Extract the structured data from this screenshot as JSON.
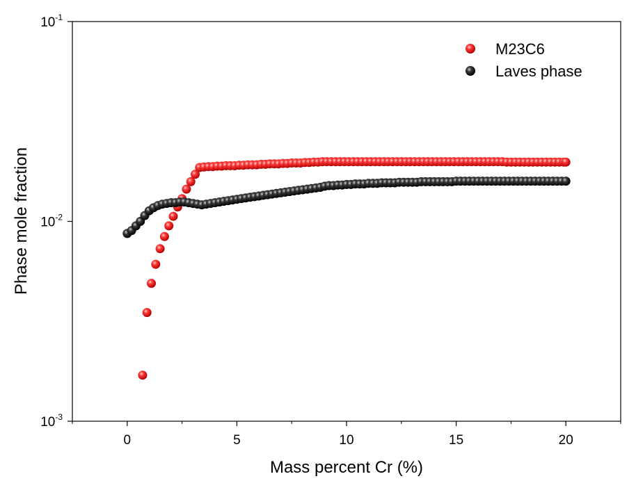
{
  "chart_data": {
    "type": "scatter",
    "title": "",
    "xlabel": "Mass percent Cr (%)",
    "ylabel": "Phase mole fraction",
    "xlim": [
      -2.5,
      22.5
    ],
    "ylim": [
      0.001,
      0.1
    ],
    "yscale": "log",
    "x_ticks": [
      0,
      5,
      10,
      15,
      20
    ],
    "y_ticks": [
      {
        "base": "10",
        "exp": "-3"
      },
      {
        "base": "10",
        "exp": "-2"
      },
      {
        "base": "10",
        "exp": "-1"
      }
    ],
    "grid": false,
    "legend": {
      "position": "top-right"
    },
    "series": [
      {
        "name": "M23C6",
        "color": "#e8141c",
        "x": [
          0.7,
          0.9,
          1.1,
          1.3,
          1.5,
          1.7,
          1.9,
          2.1,
          2.3,
          2.5,
          2.7,
          2.9,
          3.1,
          3.3,
          3.5,
          3.7,
          3.9,
          4.1,
          4.3,
          4.5,
          4.7,
          4.9,
          5.1,
          5.3,
          5.5,
          5.7,
          5.9,
          6.1,
          6.3,
          6.5,
          6.7,
          6.9,
          7.1,
          7.3,
          7.5,
          7.7,
          7.9,
          8.1,
          8.3,
          8.5,
          8.7,
          8.9,
          9.1,
          9.3,
          9.5,
          9.7,
          9.9,
          10.1,
          10.3,
          10.5,
          10.7,
          10.9,
          11.1,
          11.3,
          11.5,
          11.7,
          11.9,
          12.1,
          12.3,
          12.5,
          12.7,
          12.9,
          13.1,
          13.3,
          13.5,
          13.7,
          13.9,
          14.1,
          14.3,
          14.5,
          14.7,
          14.9,
          15.1,
          15.3,
          15.5,
          15.7,
          15.9,
          16.1,
          16.3,
          16.5,
          16.7,
          16.9,
          17.1,
          17.3,
          17.5,
          17.7,
          17.9,
          18.1,
          18.3,
          18.5,
          18.7,
          18.9,
          19.1,
          19.3,
          19.5,
          19.7,
          19.9,
          20.0
        ],
        "y": [
          0.0017,
          0.0035,
          0.0049,
          0.0061,
          0.0073,
          0.0084,
          0.0095,
          0.0106,
          0.0118,
          0.013,
          0.0145,
          0.0158,
          0.0172,
          0.0186,
          0.0187,
          0.0188,
          0.0188,
          0.0189,
          0.0189,
          0.019,
          0.019,
          0.019,
          0.0191,
          0.0191,
          0.0192,
          0.0192,
          0.0192,
          0.0193,
          0.0193,
          0.0194,
          0.0194,
          0.0194,
          0.0195,
          0.0195,
          0.0196,
          0.0196,
          0.0196,
          0.0197,
          0.0197,
          0.0198,
          0.0198,
          0.0199,
          0.0199,
          0.0199,
          0.0199,
          0.0199,
          0.0199,
          0.0199,
          0.0199,
          0.0199,
          0.0199,
          0.0199,
          0.0199,
          0.0199,
          0.0199,
          0.0199,
          0.0199,
          0.0199,
          0.0199,
          0.0199,
          0.0199,
          0.0199,
          0.0199,
          0.0199,
          0.0199,
          0.0199,
          0.0199,
          0.0199,
          0.0199,
          0.0199,
          0.0199,
          0.0199,
          0.0199,
          0.0199,
          0.0199,
          0.0199,
          0.0199,
          0.0199,
          0.0199,
          0.0199,
          0.0199,
          0.0199,
          0.0199,
          0.0198,
          0.0198,
          0.0198,
          0.0198,
          0.0198,
          0.0198,
          0.0198,
          0.0198,
          0.0198,
          0.0198,
          0.0198,
          0.0198,
          0.0198,
          0.0198,
          0.0198
        ]
      },
      {
        "name": "Laves phase",
        "color": "#141414",
        "x": [
          0.0,
          0.2,
          0.4,
          0.6,
          0.8,
          1.0,
          1.2,
          1.4,
          1.6,
          1.8,
          2.0,
          2.2,
          2.4,
          2.6,
          2.8,
          3.0,
          3.2,
          3.4,
          3.6,
          3.8,
          4.0,
          4.2,
          4.4,
          4.6,
          4.8,
          5.0,
          5.2,
          5.4,
          5.6,
          5.8,
          6.0,
          6.2,
          6.4,
          6.6,
          6.8,
          7.0,
          7.2,
          7.4,
          7.6,
          7.8,
          8.0,
          8.2,
          8.4,
          8.6,
          8.8,
          9.0,
          9.2,
          9.4,
          9.6,
          9.8,
          10.0,
          10.2,
          10.4,
          10.6,
          10.8,
          11.0,
          11.2,
          11.4,
          11.6,
          11.8,
          12.0,
          12.2,
          12.4,
          12.6,
          12.8,
          13.0,
          13.2,
          13.4,
          13.6,
          13.8,
          14.0,
          14.2,
          14.4,
          14.6,
          14.8,
          15.0,
          15.2,
          15.4,
          15.6,
          15.8,
          16.0,
          16.2,
          16.4,
          16.6,
          16.8,
          17.0,
          17.2,
          17.4,
          17.6,
          17.8,
          18.0,
          18.2,
          18.4,
          18.6,
          18.8,
          19.0,
          19.2,
          19.4,
          19.6,
          19.8,
          20.0
        ],
        "y": [
          0.0087,
          0.009,
          0.0095,
          0.01,
          0.0107,
          0.0113,
          0.0117,
          0.012,
          0.0122,
          0.0123,
          0.0124,
          0.0124,
          0.0125,
          0.0125,
          0.0124,
          0.0123,
          0.0122,
          0.0121,
          0.0122,
          0.0123,
          0.0124,
          0.0125,
          0.0126,
          0.0127,
          0.0128,
          0.0129,
          0.013,
          0.0131,
          0.0132,
          0.0133,
          0.0134,
          0.0135,
          0.0136,
          0.0137,
          0.0138,
          0.0139,
          0.014,
          0.0141,
          0.0142,
          0.0143,
          0.0144,
          0.0145,
          0.0146,
          0.0147,
          0.0148,
          0.015,
          0.0151,
          0.0151,
          0.0152,
          0.0152,
          0.0153,
          0.0153,
          0.0154,
          0.0154,
          0.0154,
          0.0155,
          0.0155,
          0.0155,
          0.0156,
          0.0156,
          0.0156,
          0.0156,
          0.0157,
          0.0157,
          0.0157,
          0.0157,
          0.0157,
          0.0158,
          0.0158,
          0.0158,
          0.0158,
          0.0158,
          0.0158,
          0.0158,
          0.0158,
          0.0159,
          0.0159,
          0.0159,
          0.0159,
          0.0159,
          0.0159,
          0.0159,
          0.0159,
          0.0159,
          0.0159,
          0.0159,
          0.0159,
          0.0159,
          0.0159,
          0.0159,
          0.0159,
          0.0159,
          0.0159,
          0.0159,
          0.0159,
          0.0159,
          0.0159,
          0.0159,
          0.0159,
          0.0159,
          0.0159
        ]
      }
    ]
  }
}
